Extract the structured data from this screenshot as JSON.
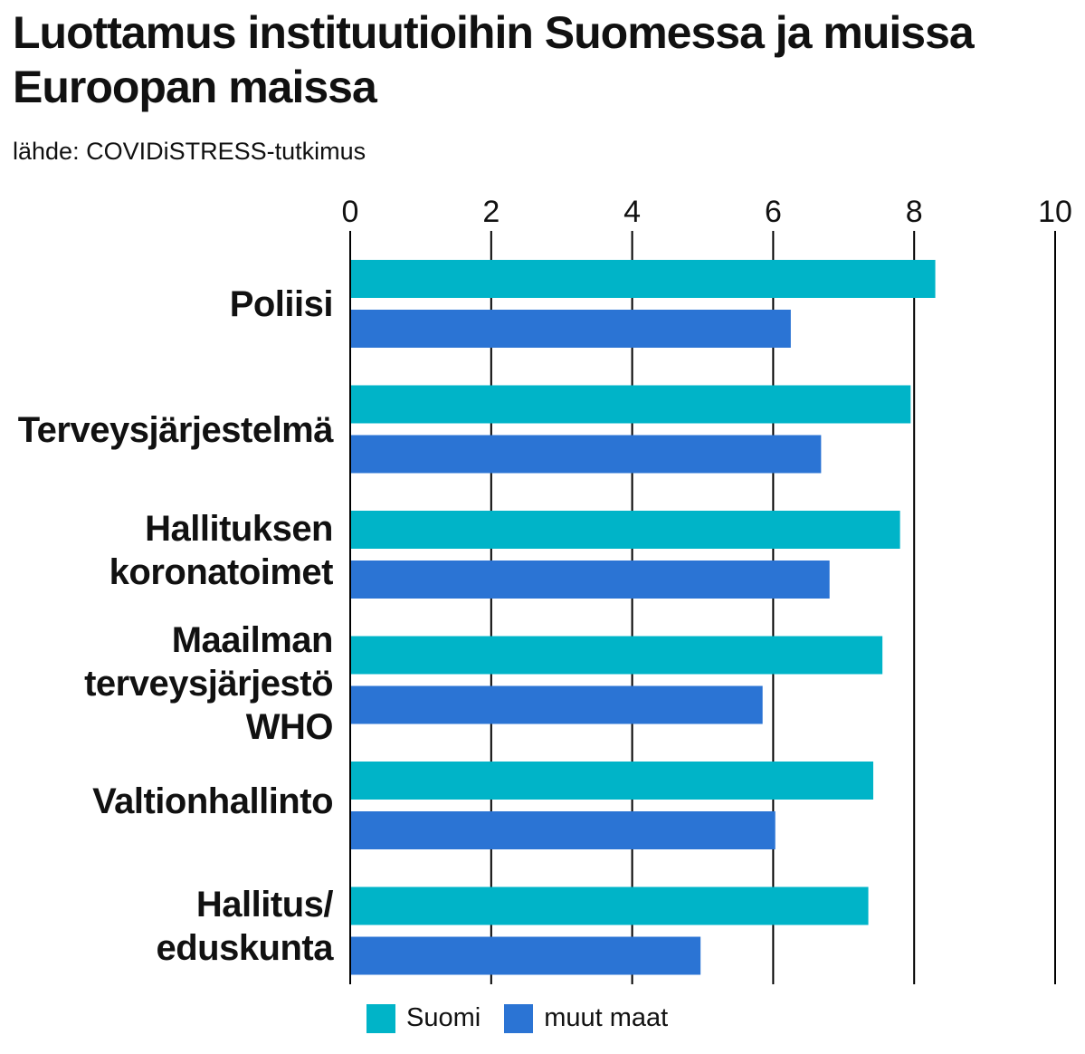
{
  "header": {
    "title": "Luottamus instituutioihin Suomessa ja muissa Euroopan maissa",
    "subtitle": "lähde: COVIDiSTRESS-tutkimus"
  },
  "colors": {
    "suomi": "#00b4c8",
    "muut_maat": "#2b74d4"
  },
  "chart_data": {
    "type": "bar",
    "orientation": "horizontal",
    "title": "Luottamus instituutioihin Suomessa ja muissa Euroopan maissa",
    "subtitle": "lähde: COVIDiSTRESS-tutkimus",
    "categories": [
      [
        "Poliisi"
      ],
      [
        "Terveysjärjestelmä"
      ],
      [
        "Hallituksen",
        "koronatoimet"
      ],
      [
        "Maailman",
        "terveysjärjestö",
        "WHO"
      ],
      [
        "Valtionhallinto"
      ],
      [
        "Hallitus/",
        "eduskunta"
      ]
    ],
    "series": [
      {
        "name": "Suomi",
        "values": [
          8.3,
          7.95,
          7.8,
          7.55,
          7.42,
          7.35
        ]
      },
      {
        "name": "muut maat",
        "values": [
          6.25,
          6.68,
          6.8,
          5.85,
          6.03,
          4.97
        ]
      }
    ],
    "xlim": [
      0,
      10
    ],
    "xticks": [
      "0",
      "2",
      "4",
      "6",
      "8",
      "10"
    ],
    "grid": true,
    "axis_position": "top",
    "legend_position": "bottom"
  },
  "legend": {
    "suomi_label": "Suomi",
    "muut_label": "muut maat"
  }
}
